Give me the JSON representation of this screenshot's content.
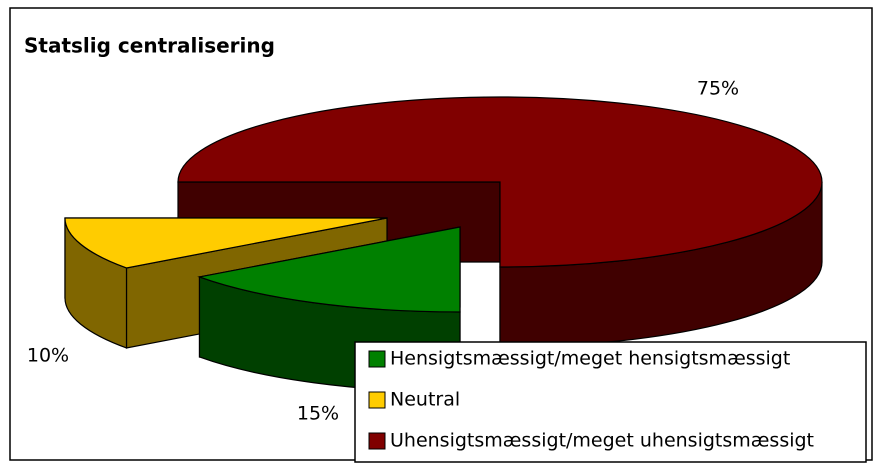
{
  "chart_data": {
    "type": "pie3d",
    "title": "Statslig centralisering",
    "categories": [
      "Hensigtsmæssigt/meget hensigtsmæssigt",
      "Neutral",
      "Uhensigtsmæssigt/meget uhensigtsmæssigt"
    ],
    "values": [
      15,
      10,
      75
    ],
    "value_labels": [
      "15%",
      "10%",
      "75%"
    ],
    "colors": [
      "#008000",
      "#ffcc00",
      "#800000"
    ],
    "legend": "bottom-right"
  }
}
